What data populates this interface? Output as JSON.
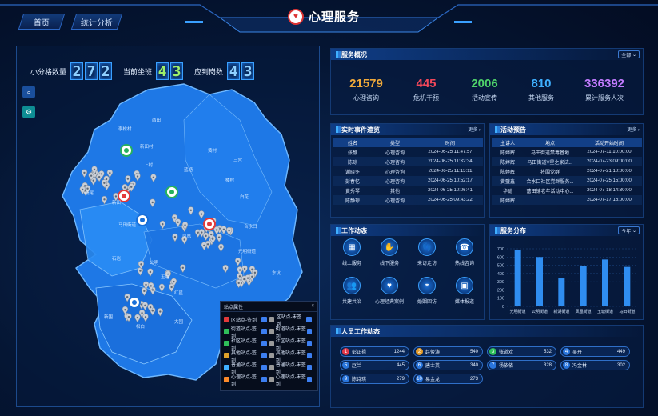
{
  "nav": {
    "home": "首页",
    "stats": "统计分析"
  },
  "header": {
    "title": "心理服务"
  },
  "counters": [
    {
      "label": "小分格数量",
      "digits": [
        "2",
        "7",
        "2"
      ]
    },
    {
      "label": "当前坐班",
      "digits": [
        "4",
        "3"
      ]
    },
    {
      "label": "应到岗数",
      "digits": [
        "4",
        "3"
      ]
    }
  ],
  "map": {
    "labels": [
      "西田",
      "李松村",
      "新田村",
      "上村",
      "蓝塘",
      "黄村",
      "三宫",
      "新田",
      "马田街道",
      "石岩",
      "光明街道",
      "白花",
      "凤凰",
      "公明",
      "玉塘",
      "红星",
      "东坑",
      "楼村",
      "杨尾",
      "合水口",
      "松白",
      "新围",
      "大围"
    ],
    "legend": {
      "title": "站点属性",
      "items": [
        "区站点-签到",
        "区站点-未签到",
        "街道站点-签到",
        "街道站点-未签到",
        "社区站点-签到",
        "社区站点-未签到",
        "其他站点-签到",
        "其他站点-未签到",
        "普通站点-签到",
        "普通站点-未签到",
        "心理站点-签到",
        "心理站点-未签到"
      ]
    }
  },
  "overview": {
    "title": "服务概况",
    "filter": "全部",
    "stats": [
      {
        "value": "21579",
        "label": "心理咨询",
        "color": "#f0a93a"
      },
      {
        "value": "445",
        "label": "危机干预",
        "color": "#f2475a"
      },
      {
        "value": "2006",
        "label": "活动宣传",
        "color": "#4ed36a"
      },
      {
        "value": "810",
        "label": "其他服务",
        "color": "#3fb0ff"
      },
      {
        "value": "336392",
        "label": "累计服务人次",
        "color": "#c27bff"
      }
    ]
  },
  "events": {
    "title": "实时事件速览",
    "more": "更多",
    "headers": [
      "姓名",
      "类型",
      "时间"
    ],
    "rows": [
      [
        "张静",
        "心理咨询",
        "2024-06-25 11:47:57"
      ],
      [
        "陈琼",
        "心理咨询",
        "2024-06-25 11:32:34"
      ],
      [
        "谢晓冬",
        "心理咨询",
        "2024-06-25 11:13:11"
      ],
      [
        "彭春忆",
        "心理咨询",
        "2024-06-25 10:52:17"
      ],
      [
        "黄秀琴",
        "其他",
        "2024-06-25 10:06:41"
      ],
      [
        "陈静琼",
        "心理咨询",
        "2024-06-25 09:43:22"
      ]
    ]
  },
  "activities": {
    "title": "活动预告",
    "more": "更多",
    "headers": [
      "主讲人",
      "地点",
      "活动开始时间"
    ],
    "rows": [
      [
        "陈婷辉",
        "马田街道禁毒基地",
        "2024-07-11 10:00:00"
      ],
      [
        "陈婷辉",
        "马田街道V星之家试...",
        "2024-07-23 09:00:00"
      ],
      [
        "陈婷辉",
        "将围党群",
        "2024-07-21 10:00:00"
      ],
      [
        "黄璧鑫",
        "合水口社区党群服务...",
        "2024-07-25 15:00:00"
      ],
      [
        "华聪",
        "蕾田铺老年活动中心...",
        "2024-07-18 14:30:00"
      ],
      [
        "陈婷辉",
        "",
        "2024-07-17 16:00:00"
      ]
    ]
  },
  "work": {
    "title": "工作动态",
    "items": [
      {
        "label": "线上服务",
        "icon": "chart-icon",
        "glyph": "▦"
      },
      {
        "label": "线下服务",
        "icon": "handshake-icon",
        "glyph": "✋"
      },
      {
        "label": "来访走访",
        "icon": "footprint-icon",
        "glyph": "👣"
      },
      {
        "label": "热线咨询",
        "icon": "phone-icon",
        "glyph": "☎"
      },
      {
        "label": "共建共治",
        "icon": "people-icon",
        "glyph": "👥"
      },
      {
        "label": "心理经典案例",
        "icon": "heart-icon",
        "glyph": "♥"
      },
      {
        "label": "婚姻回访",
        "icon": "couple-icon",
        "glyph": "⚭"
      },
      {
        "label": "媒体报道",
        "icon": "media-icon",
        "glyph": "▣"
      }
    ]
  },
  "distribution": {
    "title": "服务分布",
    "filter": "今年"
  },
  "chart_data": {
    "type": "bar",
    "categories": [
      "光明街道",
      "公明街道",
      "新湖街道",
      "凤凰街道",
      "玉塘街道",
      "马田街道"
    ],
    "values": [
      690,
      600,
      340,
      490,
      570,
      480
    ],
    "ylim": [
      0,
      700
    ],
    "yticks": [
      0,
      100,
      200,
      300,
      400,
      500,
      600,
      700
    ],
    "grid": true,
    "color": "#2f8df0"
  },
  "staff": {
    "title": "人员工作动态",
    "items": [
      {
        "rank": "1",
        "name": "彭正祖",
        "count": "1244",
        "color": "#e0394a"
      },
      {
        "rank": "2",
        "name": "赵俊涛",
        "count": "540",
        "color": "#e39b2a"
      },
      {
        "rank": "3",
        "name": "张道欢",
        "count": "532",
        "color": "#2fbf5a"
      },
      {
        "rank": "4",
        "name": "吴丹",
        "count": "449",
        "color": "#2a76dd"
      },
      {
        "rank": "5",
        "name": "赵兰",
        "count": "445",
        "color": "#2a76dd"
      },
      {
        "rank": "6",
        "name": "唐士英",
        "count": "340",
        "color": "#2a76dd"
      },
      {
        "rank": "7",
        "name": "杨依依",
        "count": "328",
        "color": "#2a76dd"
      },
      {
        "rank": "8",
        "name": "冯金林",
        "count": "302",
        "color": "#2a76dd"
      },
      {
        "rank": "9",
        "name": "陈诗琪",
        "count": "279",
        "color": "#2a76dd"
      },
      {
        "rank": "10",
        "name": "易金龙",
        "count": "273",
        "color": "#2a76dd"
      }
    ]
  }
}
